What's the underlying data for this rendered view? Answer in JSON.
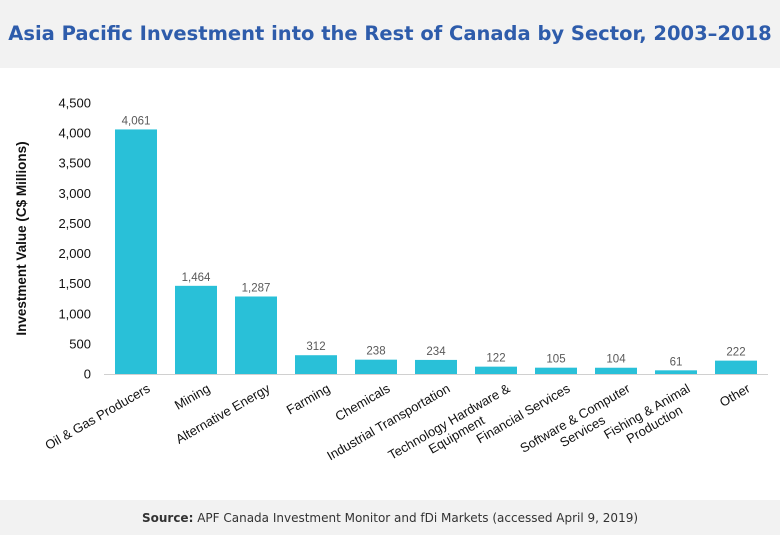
{
  "chart_data": {
    "type": "bar",
    "title": "Asia Pacific Investment into the Rest of Canada by Sector, 2003–2018",
    "xlabel": "",
    "ylabel": "Investment Value (C$ Millions)",
    "ylim": [
      0,
      4500
    ],
    "yticks": [
      0,
      500,
      1000,
      1500,
      2000,
      2500,
      3000,
      3500,
      4000,
      4500
    ],
    "ytick_labels": [
      "0",
      "500",
      "1,000",
      "1,500",
      "2,000",
      "2,500",
      "3,000",
      "3,500",
      "4,000",
      "4,500"
    ],
    "grid": false,
    "bar_color": "#29c0d8",
    "categories": [
      [
        "Oil & Gas Producers"
      ],
      [
        "Mining"
      ],
      [
        "Alternative Energy"
      ],
      [
        "Farming"
      ],
      [
        "Chemicals"
      ],
      [
        "Industrial Transportation"
      ],
      [
        "Technology Hardware &",
        "Equipment"
      ],
      [
        "Financial Services"
      ],
      [
        "Software & Computer",
        "Services"
      ],
      [
        "Fishing & Animal",
        "Production"
      ],
      [
        "Other"
      ]
    ],
    "values": [
      4061,
      1464,
      1287,
      312,
      238,
      234,
      122,
      105,
      104,
      61,
      222
    ],
    "value_labels": [
      "4,061",
      "1,464",
      "1,287",
      "312",
      "238",
      "234",
      "122",
      "105",
      "104",
      "61",
      "222"
    ]
  },
  "source": {
    "label": "Source:",
    "text": " APF Canada Investment Monitor and fDi Markets (accessed April 9, 2019)"
  },
  "colors": {
    "title": "#2e5cab",
    "band": "#f2f2f2"
  }
}
